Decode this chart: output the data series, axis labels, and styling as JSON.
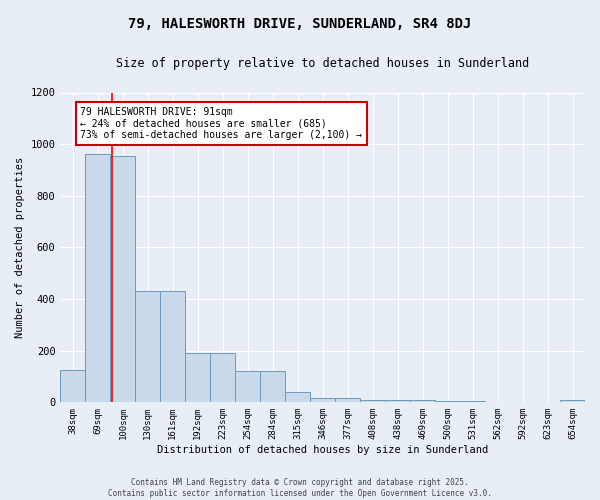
{
  "title1": "79, HALESWORTH DRIVE, SUNDERLAND, SR4 8DJ",
  "title2": "Size of property relative to detached houses in Sunderland",
  "xlabel": "Distribution of detached houses by size in Sunderland",
  "ylabel": "Number of detached properties",
  "categories": [
    "38sqm",
    "69sqm",
    "100sqm",
    "130sqm",
    "161sqm",
    "192sqm",
    "223sqm",
    "254sqm",
    "284sqm",
    "315sqm",
    "346sqm",
    "377sqm",
    "408sqm",
    "438sqm",
    "469sqm",
    "500sqm",
    "531sqm",
    "562sqm",
    "592sqm",
    "623sqm",
    "654sqm"
  ],
  "values": [
    125,
    960,
    955,
    430,
    430,
    190,
    190,
    120,
    120,
    40,
    15,
    15,
    10,
    10,
    10,
    5,
    5,
    2,
    2,
    1,
    8
  ],
  "bar_color": "#c9d9ea",
  "bar_edge_color": "#6a9cbf",
  "red_line_x": 1.55,
  "annotation_title": "79 HALESWORTH DRIVE: 91sqm",
  "annotation_line2": "← 24% of detached houses are smaller (685)",
  "annotation_line3": "73% of semi-detached houses are larger (2,100) →",
  "annotation_box_color": "#ffffff",
  "annotation_border_color": "#cc0000",
  "ylim": [
    0,
    1200
  ],
  "yticks": [
    0,
    200,
    400,
    600,
    800,
    1000,
    1200
  ],
  "background_color": "#e8eef5",
  "footer1": "Contains HM Land Registry data © Crown copyright and database right 2025.",
  "footer2": "Contains public sector information licensed under the Open Government Licence v3.0."
}
